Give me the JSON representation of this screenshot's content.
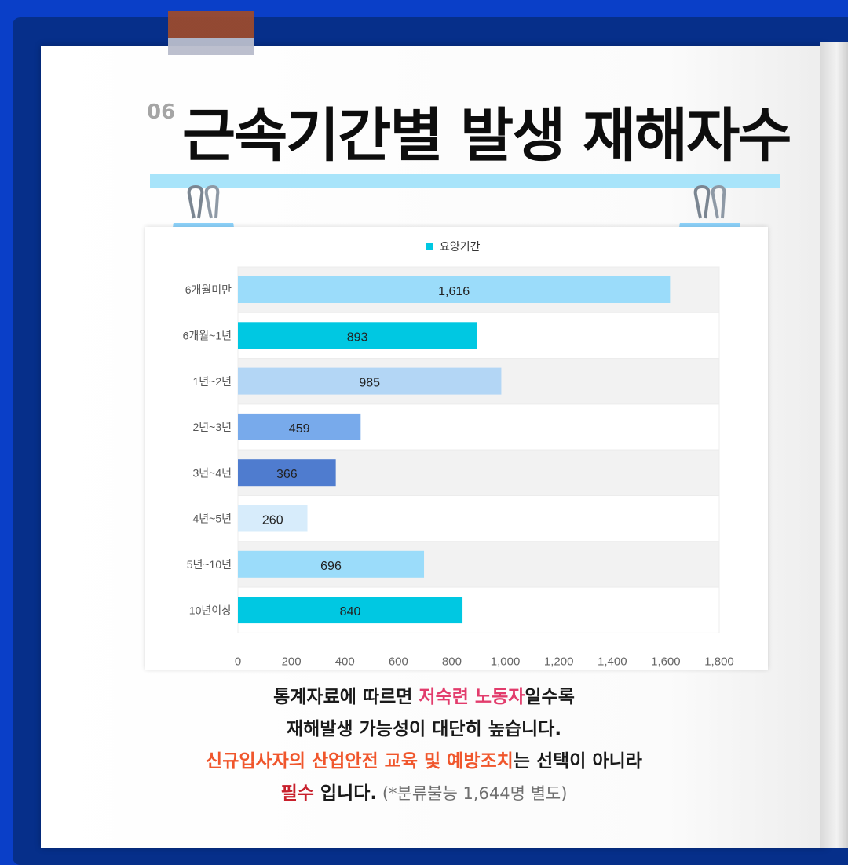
{
  "page_number": "06",
  "title": "근속기간별 발생 재해자수",
  "caption": {
    "line1_a": "통계자료에 따르면 ",
    "line1_b": "저숙련 노동자",
    "line1_c": "일수록",
    "line2": "재해발생 가능성이 대단히 높습니다.",
    "line3_a": "신규입사자의 산업안전 교육 및 예방조치",
    "line3_b": "는 선택이 아니라",
    "line4_a": "필수",
    "line4_b": " 입니다.",
    "line4_c": " (*분류불능 1,644명 별도)"
  },
  "colors": {
    "background": "#0a3fc8",
    "title_bar": "#a8e4fa",
    "highlight_pink": "#e23c6c",
    "highlight_orange": "#f0562c",
    "highlight_red": "#c8202c"
  },
  "chart_data": {
    "type": "bar",
    "orientation": "horizontal",
    "legend": "요양기간",
    "legend_position": "top",
    "categories": [
      "6개월미만",
      "6개월~1년",
      "1년~2년",
      "2년~3년",
      "3년~4년",
      "4년~5년",
      "5년~10년",
      "10년이상"
    ],
    "values": [
      1616,
      893,
      985,
      459,
      366,
      260,
      696,
      840
    ],
    "data_labels": [
      "1,616",
      "893",
      "985",
      "459",
      "366",
      "260",
      "696",
      "840"
    ],
    "bar_colors": [
      "#9bdcfa",
      "#00c8e2",
      "#b3d6f5",
      "#78aaeb",
      "#4f7ccf",
      "#d7ecfb",
      "#9bdcfa",
      "#00c8e2"
    ],
    "xlim": [
      0,
      1800
    ],
    "x_ticks": [
      0,
      200,
      400,
      600,
      800,
      1000,
      1200,
      1400,
      1600,
      1800
    ],
    "x_tick_labels": [
      "0",
      "200",
      "400",
      "600",
      "800",
      "1,000",
      "1,200",
      "1,400",
      "1,600",
      "1,800"
    ],
    "grid": false,
    "band_colors": [
      "#f2f2f2",
      "#ffffff"
    ]
  }
}
